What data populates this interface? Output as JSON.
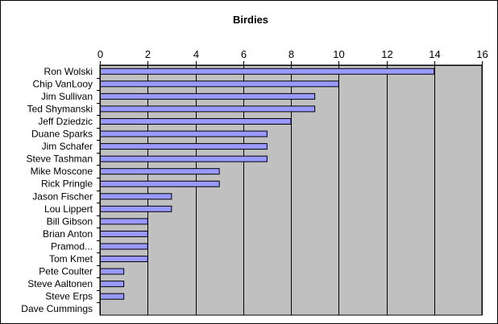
{
  "chart_data": {
    "type": "bar",
    "orientation": "horizontal",
    "title": "Birdies",
    "xlabel": "",
    "ylabel": "",
    "xlim": [
      0,
      16
    ],
    "xticks": [
      0,
      2,
      4,
      6,
      8,
      10,
      12,
      14,
      16
    ],
    "x_axis_position": "top",
    "grid": true,
    "legend": "none",
    "categories": [
      "Ron Wolski",
      "Chip VanLooy",
      "Jim Sullivan",
      "Ted Shymanski",
      "Jeff Dziedzic",
      "Duane Sparks",
      "Jim Schafer",
      "Steve Tashman",
      "Mike Moscone",
      "Rick Pringle",
      "Jason Fischer",
      "Lou Lippert",
      "Bill Gibson",
      "Brian Anton",
      "Pramod...",
      "Tom Kmet",
      "Pete Coulter",
      "Steve Aaltonen",
      "Steve Erps",
      "Dave Cummings"
    ],
    "values": [
      14,
      10,
      9,
      9,
      8,
      7,
      7,
      7,
      5,
      5,
      3,
      3,
      2,
      2,
      2,
      2,
      1,
      1,
      1,
      0
    ],
    "colors": {
      "plot_bg": "#c0c0c0",
      "bar_fill": "#9999ff",
      "bar_stroke": "#000000",
      "grid": "#000000"
    }
  }
}
